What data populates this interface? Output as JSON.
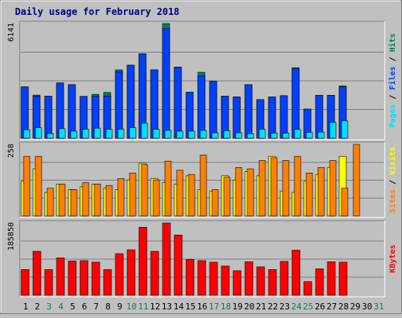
{
  "chart_data": {
    "type": "bar",
    "title": "Daily usage for February 2018",
    "colors": {
      "background": "#C0C0C0",
      "title": "#000080",
      "hits": "#00805C",
      "files": "#0040FF",
      "pages": "#00E0FF",
      "visits": "#FFFF00",
      "sites": "#FF8000",
      "kbytes": "#FF0000",
      "weekend_label": "#00805C",
      "weekday_label": "#000000"
    },
    "categories": [
      "1",
      "2",
      "3",
      "4",
      "5",
      "6",
      "7",
      "8",
      "9",
      "10",
      "11",
      "12",
      "13",
      "14",
      "15",
      "16",
      "17",
      "18",
      "19",
      "20",
      "21",
      "22",
      "23",
      "24",
      "25",
      "26",
      "27",
      "28",
      "29",
      "30",
      "31"
    ],
    "weekend_days": [
      "3",
      "4",
      "10",
      "11",
      "17",
      "18",
      "24",
      "25",
      "31"
    ],
    "panels": [
      {
        "id": "hits-files-pages",
        "axis_max_label": "6141",
        "ylim": [
          0,
          6141
        ],
        "side_label_parts": [
          {
            "text": "Pages",
            "color": "#00E0FF"
          },
          {
            "text": " / ",
            "color": "#000000"
          },
          {
            "text": "Files",
            "color": "#0040FF"
          },
          {
            "text": " / ",
            "color": "#000000"
          },
          {
            "text": "Hits",
            "color": "#00805C"
          }
        ],
        "series": [
          {
            "name": "Hits",
            "color": "#00805C",
            "values": [
              2750,
              2310,
              2250,
              2960,
              2870,
              2240,
              2350,
              2450,
              3660,
              3910,
              4520,
              3660,
              6141,
              3810,
              2460,
              3530,
              3060,
              2250,
              2210,
              2870,
              2070,
              2210,
              2280,
              3780,
              1560,
              2300,
              2300,
              2800,
              0,
              0,
              0
            ]
          },
          {
            "name": "Files",
            "color": "#0040FF",
            "values": [
              2750,
              2260,
              2250,
              2960,
              2870,
              2240,
              2240,
              2260,
              3560,
              3910,
              4520,
              3660,
              5880,
              3810,
              2460,
              3330,
              3060,
              2250,
              2210,
              2870,
              2070,
              2210,
              2280,
              3730,
              1560,
              2300,
              2300,
              2750,
              0,
              0,
              0
            ]
          },
          {
            "name": "Pages",
            "color": "#00E0FF",
            "values": [
              450,
              560,
              250,
              510,
              380,
              480,
              540,
              480,
              480,
              560,
              800,
              480,
              420,
              380,
              380,
              420,
              290,
              400,
              290,
              240,
              480,
              280,
              270,
              470,
              320,
              330,
              850,
              930,
              0,
              0,
              0
            ]
          }
        ]
      },
      {
        "id": "visits-sites",
        "axis_max_label": "258",
        "ylim": [
          0,
          258
        ],
        "side_label_parts": [
          {
            "text": "Sites",
            "color": "#FF8000"
          },
          {
            "text": " / ",
            "color": "#000000"
          },
          {
            "text": "Visits",
            "color": "#FFFF00"
          }
        ],
        "series": [
          {
            "name": "Visits",
            "color": "#FFFF00",
            "values": [
              125,
              170,
              85,
              115,
              95,
              105,
              115,
              100,
              95,
              130,
              190,
              135,
              120,
              115,
              145,
              95,
              90,
              145,
              130,
              160,
              145,
              215,
              90,
              85,
              125,
              150,
              175,
              215,
              0,
              0,
              0
            ]
          },
          {
            "name": "Sites",
            "color": "#FF8000",
            "values": [
              215,
              215,
              100,
              115,
              95,
              120,
              115,
              110,
              135,
              155,
              185,
              130,
              198,
              165,
              150,
              220,
              95,
              140,
              175,
              170,
              200,
              210,
              200,
              215,
              155,
              175,
              200,
              100,
              258,
              0,
              0
            ]
          }
        ]
      },
      {
        "id": "kbytes",
        "axis_max_label": "185850",
        "ylim": [
          0,
          185850
        ],
        "side_label_parts": [
          {
            "text": "KBytes",
            "color": "#FF0000"
          }
        ],
        "series": [
          {
            "name": "KBytes",
            "color": "#FF0000",
            "values": [
              66000,
              113000,
              66000,
              96000,
              88000,
              89000,
              85000,
              66000,
              107000,
              117000,
              175000,
              113000,
              185850,
              155000,
              92000,
              89000,
              85000,
              75000,
              63000,
              86000,
              73000,
              66000,
              87000,
              116000,
              35000,
              68000,
              86000,
              85000,
              0,
              0,
              0
            ]
          }
        ]
      }
    ]
  }
}
